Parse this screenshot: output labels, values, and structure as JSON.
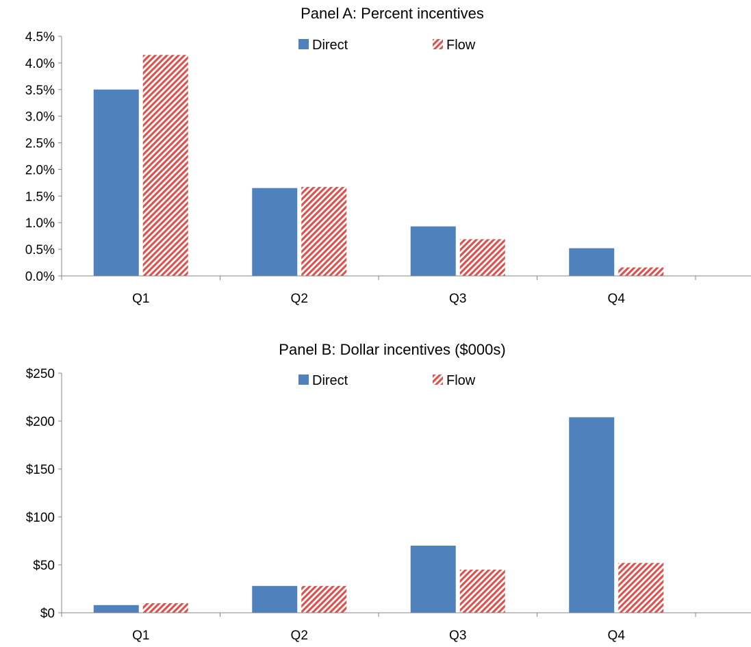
{
  "chart_data": [
    {
      "type": "bar",
      "title": "Panel A: Percent incentives",
      "categories": [
        "Q1",
        "Q2",
        "Q3",
        "Q4"
      ],
      "series": [
        {
          "name": "Direct",
          "values": [
            3.5,
            1.65,
            0.93,
            0.52
          ],
          "color": "#4f81bd",
          "pattern": "solid"
        },
        {
          "name": "Flow",
          "values": [
            4.15,
            1.67,
            0.69,
            0.16
          ],
          "color": "#d9534f",
          "pattern": "diagonal-stripes"
        }
      ],
      "ylim": [
        0,
        4.5
      ],
      "yticks": [
        0,
        0.5,
        1.0,
        1.5,
        2.0,
        2.5,
        3.0,
        3.5,
        4.0,
        4.5
      ],
      "ytick_labels": [
        "0.0%",
        "0.5%",
        "1.0%",
        "1.5%",
        "2.0%",
        "2.5%",
        "3.0%",
        "3.5%",
        "4.0%",
        "4.5%"
      ],
      "xlabel": "",
      "ylabel": "",
      "grid": false,
      "legend": "top-center"
    },
    {
      "type": "bar",
      "title": "Panel B: Dollar incentives ($000s)",
      "categories": [
        "Q1",
        "Q2",
        "Q3",
        "Q4"
      ],
      "series": [
        {
          "name": "Direct",
          "values": [
            8,
            28,
            70,
            204
          ],
          "color": "#4f81bd",
          "pattern": "solid"
        },
        {
          "name": "Flow",
          "values": [
            10,
            28,
            45,
            52
          ],
          "color": "#d9534f",
          "pattern": "diagonal-stripes"
        }
      ],
      "ylim": [
        0,
        250
      ],
      "yticks": [
        0,
        50,
        100,
        150,
        200,
        250
      ],
      "ytick_labels": [
        "$0",
        "$50",
        "$100",
        "$150",
        "$200",
        "$250"
      ],
      "xlabel": "",
      "ylabel": "",
      "grid": false,
      "legend": "top-center"
    }
  ]
}
